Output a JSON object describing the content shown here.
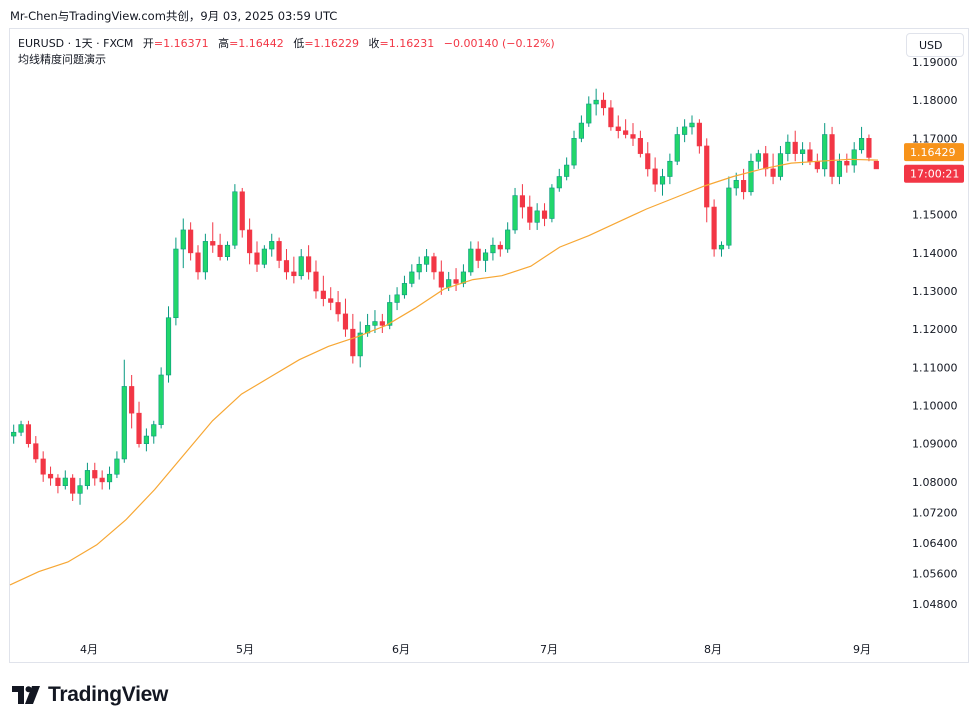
{
  "header": {
    "caption": "Mr-Chen与TradingView.com共创，9月 03, 2025 03:59 UTC"
  },
  "legend": {
    "symbol": "EURUSD · 1天 · FXCM",
    "open_label": "开",
    "open": "=1.16371",
    "high_label": "高",
    "high": "=1.16442",
    "low_label": "低",
    "low": "=1.16229",
    "close_label": "收",
    "close": "=1.16231",
    "change": "−0.00140 (−0.12%)",
    "study": "均线精度问题演示"
  },
  "currency_button": "USD",
  "brand": {
    "name": "TradingView"
  },
  "colors": {
    "up": "#089981",
    "up_fill": "#22d66b",
    "down": "#f23645",
    "ma": "#f7a734",
    "axis_text": "#131722"
  },
  "chart_data": {
    "type": "candlestick",
    "title": "",
    "y_ticks": [
      "1.19000",
      "1.18000",
      "1.17000",
      "1.16000",
      "1.15000",
      "1.14000",
      "1.13000",
      "1.12000",
      "1.11000",
      "1.10000",
      "1.09000",
      "1.08000",
      "1.07200",
      "1.06400",
      "1.05600",
      "1.04800"
    ],
    "x_ticks": [
      "4月",
      "5月",
      "6月",
      "7月",
      "8月",
      "9月"
    ],
    "price_labels": [
      {
        "text": "1.16429",
        "value": 1.16429,
        "color": "#f7931a",
        "series": "moving average"
      },
      {
        "text": "17:00:21",
        "value": 1.16231,
        "color": "#f23645",
        "series": "last price"
      }
    ],
    "ohlc_approx": [
      [
        1.092,
        1.095,
        1.09,
        1.093
      ],
      [
        1.093,
        1.096,
        1.092,
        1.095
      ],
      [
        1.095,
        1.096,
        1.089,
        1.09
      ],
      [
        1.09,
        1.092,
        1.085,
        1.086
      ],
      [
        1.086,
        1.088,
        1.08,
        1.082
      ],
      [
        1.082,
        1.084,
        1.079,
        1.081
      ],
      [
        1.081,
        1.082,
        1.077,
        1.079
      ],
      [
        1.079,
        1.083,
        1.078,
        1.081
      ],
      [
        1.081,
        1.082,
        1.075,
        1.077
      ],
      [
        1.077,
        1.081,
        1.074,
        1.079
      ],
      [
        1.079,
        1.085,
        1.078,
        1.083
      ],
      [
        1.083,
        1.085,
        1.079,
        1.081
      ],
      [
        1.081,
        1.083,
        1.078,
        1.08
      ],
      [
        1.08,
        1.084,
        1.078,
        1.082
      ],
      [
        1.082,
        1.088,
        1.081,
        1.086
      ],
      [
        1.086,
        1.112,
        1.085,
        1.105
      ],
      [
        1.105,
        1.108,
        1.094,
        1.098
      ],
      [
        1.098,
        1.101,
        1.089,
        1.09
      ],
      [
        1.09,
        1.094,
        1.088,
        1.092
      ],
      [
        1.092,
        1.096,
        1.09,
        1.095
      ],
      [
        1.095,
        1.11,
        1.094,
        1.108
      ],
      [
        1.108,
        1.126,
        1.106,
        1.123
      ],
      [
        1.123,
        1.144,
        1.121,
        1.141
      ],
      [
        1.141,
        1.149,
        1.136,
        1.146
      ],
      [
        1.146,
        1.148,
        1.138,
        1.14
      ],
      [
        1.14,
        1.142,
        1.133,
        1.135
      ],
      [
        1.135,
        1.145,
        1.133,
        1.143
      ],
      [
        1.143,
        1.148,
        1.14,
        1.142
      ],
      [
        1.142,
        1.145,
        1.138,
        1.139
      ],
      [
        1.139,
        1.143,
        1.138,
        1.142
      ],
      [
        1.142,
        1.158,
        1.141,
        1.156
      ],
      [
        1.156,
        1.157,
        1.144,
        1.146
      ],
      [
        1.146,
        1.149,
        1.137,
        1.14
      ],
      [
        1.14,
        1.143,
        1.135,
        1.137
      ],
      [
        1.137,
        1.142,
        1.136,
        1.141
      ],
      [
        1.141,
        1.145,
        1.139,
        1.143
      ],
      [
        1.143,
        1.144,
        1.136,
        1.138
      ],
      [
        1.138,
        1.141,
        1.133,
        1.135
      ],
      [
        1.135,
        1.139,
        1.132,
        1.134
      ],
      [
        1.134,
        1.141,
        1.133,
        1.139
      ],
      [
        1.139,
        1.142,
        1.133,
        1.135
      ],
      [
        1.135,
        1.138,
        1.128,
        1.13
      ],
      [
        1.13,
        1.134,
        1.126,
        1.128
      ],
      [
        1.128,
        1.131,
        1.125,
        1.127
      ],
      [
        1.127,
        1.13,
        1.122,
        1.124
      ],
      [
        1.124,
        1.128,
        1.118,
        1.12
      ],
      [
        1.12,
        1.124,
        1.111,
        1.113
      ],
      [
        1.113,
        1.122,
        1.11,
        1.119
      ],
      [
        1.119,
        1.124,
        1.118,
        1.121
      ],
      [
        1.121,
        1.125,
        1.119,
        1.122
      ],
      [
        1.122,
        1.124,
        1.119,
        1.121
      ],
      [
        1.121,
        1.129,
        1.12,
        1.127
      ],
      [
        1.127,
        1.131,
        1.125,
        1.129
      ],
      [
        1.129,
        1.134,
        1.128,
        1.132
      ],
      [
        1.132,
        1.137,
        1.131,
        1.135
      ],
      [
        1.135,
        1.139,
        1.133,
        1.137
      ],
      [
        1.137,
        1.141,
        1.135,
        1.139
      ],
      [
        1.139,
        1.14,
        1.133,
        1.135
      ],
      [
        1.135,
        1.138,
        1.129,
        1.131
      ],
      [
        1.131,
        1.135,
        1.13,
        1.133
      ],
      [
        1.133,
        1.136,
        1.13,
        1.132
      ],
      [
        1.132,
        1.137,
        1.131,
        1.135
      ],
      [
        1.135,
        1.143,
        1.134,
        1.141
      ],
      [
        1.141,
        1.143,
        1.136,
        1.138
      ],
      [
        1.138,
        1.141,
        1.135,
        1.14
      ],
      [
        1.14,
        1.144,
        1.138,
        1.142
      ],
      [
        1.142,
        1.143,
        1.139,
        1.141
      ],
      [
        1.141,
        1.148,
        1.14,
        1.146
      ],
      [
        1.146,
        1.157,
        1.145,
        1.155
      ],
      [
        1.155,
        1.158,
        1.149,
        1.152
      ],
      [
        1.152,
        1.155,
        1.146,
        1.148
      ],
      [
        1.148,
        1.153,
        1.146,
        1.151
      ],
      [
        1.151,
        1.153,
        1.147,
        1.149
      ],
      [
        1.149,
        1.158,
        1.148,
        1.157
      ],
      [
        1.157,
        1.162,
        1.156,
        1.16
      ],
      [
        1.16,
        1.165,
        1.159,
        1.163
      ],
      [
        1.163,
        1.172,
        1.162,
        1.17
      ],
      [
        1.17,
        1.176,
        1.169,
        1.174
      ],
      [
        1.174,
        1.181,
        1.173,
        1.179
      ],
      [
        1.179,
        1.183,
        1.176,
        1.18
      ],
      [
        1.18,
        1.182,
        1.176,
        1.178
      ],
      [
        1.178,
        1.18,
        1.172,
        1.173
      ],
      [
        1.173,
        1.176,
        1.17,
        1.172
      ],
      [
        1.172,
        1.175,
        1.17,
        1.171
      ],
      [
        1.171,
        1.174,
        1.168,
        1.17
      ],
      [
        1.17,
        1.172,
        1.165,
        1.166
      ],
      [
        1.166,
        1.169,
        1.16,
        1.162
      ],
      [
        1.162,
        1.165,
        1.156,
        1.158
      ],
      [
        1.158,
        1.162,
        1.155,
        1.16
      ],
      [
        1.16,
        1.166,
        1.158,
        1.164
      ],
      [
        1.164,
        1.173,
        1.163,
        1.171
      ],
      [
        1.171,
        1.175,
        1.169,
        1.173
      ],
      [
        1.173,
        1.176,
        1.171,
        1.174
      ],
      [
        1.174,
        1.175,
        1.166,
        1.168
      ],
      [
        1.168,
        1.17,
        1.148,
        1.152
      ],
      [
        1.152,
        1.154,
        1.139,
        1.141
      ],
      [
        1.141,
        1.143,
        1.139,
        1.142
      ],
      [
        1.142,
        1.16,
        1.141,
        1.157
      ],
      [
        1.157,
        1.161,
        1.155,
        1.159
      ],
      [
        1.159,
        1.162,
        1.154,
        1.156
      ],
      [
        1.156,
        1.166,
        1.155,
        1.164
      ],
      [
        1.164,
        1.167,
        1.162,
        1.166
      ],
      [
        1.166,
        1.168,
        1.16,
        1.162
      ],
      [
        1.162,
        1.166,
        1.158,
        1.16
      ],
      [
        1.16,
        1.168,
        1.159,
        1.166
      ],
      [
        1.166,
        1.171,
        1.164,
        1.169
      ],
      [
        1.169,
        1.172,
        1.164,
        1.166
      ],
      [
        1.166,
        1.169,
        1.163,
        1.167
      ],
      [
        1.167,
        1.169,
        1.163,
        1.164
      ],
      [
        1.164,
        1.166,
        1.161,
        1.162
      ],
      [
        1.162,
        1.174,
        1.16,
        1.171
      ],
      [
        1.171,
        1.173,
        1.158,
        1.16
      ],
      [
        1.16,
        1.166,
        1.158,
        1.164
      ],
      [
        1.164,
        1.166,
        1.161,
        1.163
      ],
      [
        1.163,
        1.169,
        1.161,
        1.167
      ],
      [
        1.167,
        1.173,
        1.166,
        1.17
      ],
      [
        1.17,
        1.171,
        1.164,
        1.165
      ],
      [
        1.164,
        1.164,
        1.162,
        1.162
      ]
    ],
    "ma_approx": [
      1.053,
      1.0565,
      1.059,
      1.0635,
      1.07,
      1.078,
      1.087,
      1.096,
      1.103,
      1.1075,
      1.112,
      1.1155,
      1.118,
      1.121,
      1.1255,
      1.1305,
      1.133,
      1.134,
      1.1365,
      1.1415,
      1.1445,
      1.148,
      1.1515,
      1.1545,
      1.1575,
      1.16,
      1.162,
      1.1635,
      1.164,
      1.1645,
      1.16429
    ],
    "yRange": [
      1.042,
      1.193
    ]
  }
}
